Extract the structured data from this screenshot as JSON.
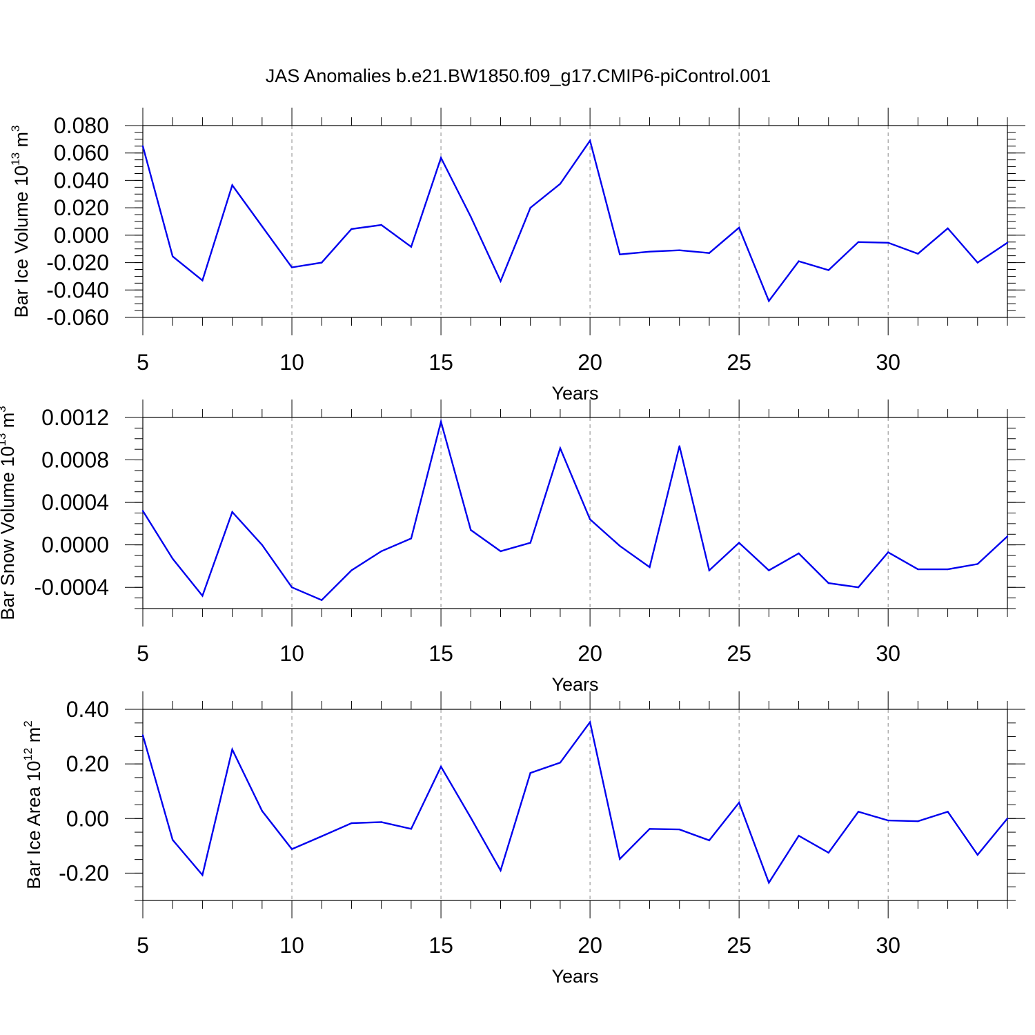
{
  "title": "JAS Anomalies b.e21.BW1850.f09_g17.CMIP6-piControl.001",
  "colors": {
    "line": "#0000ee",
    "grid": "#888888",
    "axis": "#000000"
  },
  "chart_data": [
    {
      "type": "line",
      "xlabel": "Years",
      "ylabel": {
        "text": "Bar Ice Volume 10",
        "sup": "13",
        "unit": " m",
        "unit_sup": "3"
      },
      "xlim": [
        5,
        34
      ],
      "ylim": [
        -0.06,
        0.08
      ],
      "x_ticks": [
        "5",
        "10",
        "15",
        "20",
        "25",
        "30"
      ],
      "y_ticks": [
        {
          "v": -0.06,
          "label": "-0.060"
        },
        {
          "v": -0.04,
          "label": "-0.040"
        },
        {
          "v": -0.02,
          "label": "-0.020"
        },
        {
          "v": 0.0,
          "label": "0.000"
        },
        {
          "v": 0.02,
          "label": "0.020"
        },
        {
          "v": 0.04,
          "label": "0.040"
        },
        {
          "v": 0.06,
          "label": "0.060"
        },
        {
          "v": 0.08,
          "label": "0.080"
        }
      ],
      "y_minor": 0.005,
      "x": [
        5,
        6,
        7,
        8,
        9,
        10,
        11,
        12,
        13,
        14,
        15,
        16,
        17,
        18,
        19,
        20,
        21,
        22,
        23,
        24,
        25,
        26,
        27,
        28,
        29,
        30,
        31,
        32,
        33,
        34
      ],
      "values": [
        0.065,
        -0.0155,
        -0.033,
        0.0365,
        0.0065,
        -0.0235,
        -0.02,
        0.0045,
        0.0075,
        -0.0085,
        0.0565,
        0.0135,
        -0.0335,
        0.02,
        0.0375,
        0.069,
        -0.014,
        -0.012,
        -0.011,
        -0.013,
        0.0055,
        -0.048,
        -0.019,
        -0.0255,
        -0.005,
        -0.0055,
        -0.0135,
        0.005,
        -0.02,
        -0.0055
      ]
    },
    {
      "type": "line",
      "xlabel": "Years",
      "ylabel": {
        "text": "Bar Snow Volume 10",
        "sup": "13",
        "unit": " m",
        "unit_sup": "3"
      },
      "xlim": [
        5,
        34
      ],
      "ylim": [
        -0.0006,
        0.0012
      ],
      "x_ticks": [
        "5",
        "10",
        "15",
        "20",
        "25",
        "30"
      ],
      "y_ticks": [
        {
          "v": -0.0004,
          "label": "-0.0004"
        },
        {
          "v": 0.0,
          "label": "0.0000"
        },
        {
          "v": 0.0004,
          "label": "0.0004"
        },
        {
          "v": 0.0008,
          "label": "0.0008"
        },
        {
          "v": 0.0012,
          "label": "0.0012"
        }
      ],
      "y_minor": 0.0001,
      "x": [
        5,
        6,
        7,
        8,
        9,
        10,
        11,
        12,
        13,
        14,
        15,
        16,
        17,
        18,
        19,
        20,
        21,
        22,
        23,
        24,
        25,
        26,
        27,
        28,
        29,
        30,
        31,
        32,
        33,
        34
      ],
      "values": [
        0.00032,
        -0.00013,
        -0.00048,
        0.00031,
        0.0,
        -0.0004,
        -0.00052,
        -0.00024,
        -6e-05,
        6e-05,
        0.00116,
        0.00014,
        -6e-05,
        2e-05,
        0.00091,
        0.00024,
        -1e-05,
        -0.00021,
        0.00093,
        -0.00024,
        2e-05,
        -0.00024,
        -8e-05,
        -0.00036,
        -0.0004,
        -7e-05,
        -0.00023,
        -0.00023,
        -0.00018,
        8e-05
      ]
    },
    {
      "type": "line",
      "xlabel": "Years",
      "ylabel": {
        "text": "Bar Ice Area 10",
        "sup": "12",
        "unit": " m",
        "unit_sup": "2"
      },
      "xlim": [
        5,
        34
      ],
      "ylim": [
        -0.3,
        0.4
      ],
      "x_ticks": [
        "5",
        "10",
        "15",
        "20",
        "25",
        "30"
      ],
      "y_ticks": [
        {
          "v": -0.2,
          "label": "-0.20"
        },
        {
          "v": 0.0,
          "label": "0.00"
        },
        {
          "v": 0.2,
          "label": "0.20"
        },
        {
          "v": 0.4,
          "label": "0.40"
        }
      ],
      "y_minor": 0.05,
      "x": [
        5,
        6,
        7,
        8,
        9,
        10,
        11,
        12,
        13,
        14,
        15,
        16,
        17,
        18,
        19,
        20,
        21,
        22,
        23,
        24,
        25,
        26,
        27,
        28,
        29,
        30,
        31,
        32,
        33,
        34
      ],
      "values": [
        0.305,
        -0.078,
        -0.207,
        0.253,
        0.028,
        -0.112,
        -0.065,
        -0.017,
        -0.013,
        -0.038,
        0.19,
        0.003,
        -0.19,
        0.167,
        0.205,
        0.353,
        -0.148,
        -0.038,
        -0.04,
        -0.08,
        0.058,
        -0.235,
        -0.063,
        -0.125,
        0.025,
        -0.007,
        -0.01,
        0.025,
        -0.133,
        0.0
      ]
    }
  ]
}
